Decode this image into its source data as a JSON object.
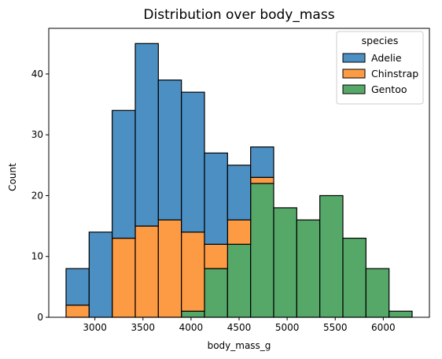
{
  "chart_data": {
    "type": "bar",
    "subtype": "stacked-histogram",
    "title": "Distribution over body_mass",
    "xlabel": "body_mass_g",
    "ylabel": "Count",
    "xlim": [
      2520,
      6480
    ],
    "ylim": [
      0,
      47.5
    ],
    "xticks": [
      3000,
      3500,
      4000,
      4500,
      5000,
      5500,
      6000
    ],
    "yticks": [
      0,
      10,
      20,
      30,
      40
    ],
    "bin_edges": [
      2700,
      2940,
      3180,
      3420,
      3660,
      3900,
      4140,
      4380,
      4620,
      4860,
      5100,
      5340,
      5580,
      5820,
      6060,
      6300
    ],
    "grid": false,
    "legend": {
      "title": "species",
      "position": "top-right",
      "entries": [
        "Adelie",
        "Chinstrap",
        "Gentoo"
      ]
    },
    "series": [
      {
        "name": "Gentoo",
        "color": "#55a868",
        "values": [
          0,
          0,
          0,
          0,
          0,
          1,
          8,
          12,
          22,
          18,
          16,
          20,
          13,
          8,
          1
        ]
      },
      {
        "name": "Chinstrap",
        "color": "#fd9a44",
        "values": [
          2,
          0,
          13,
          15,
          16,
          13,
          4,
          4,
          1,
          0,
          0,
          0,
          0,
          0,
          0
        ]
      },
      {
        "name": "Adelie",
        "color": "#4c8fc3",
        "values": [
          6,
          14,
          21,
          30,
          23,
          23,
          15,
          9,
          5,
          0,
          0,
          0,
          0,
          0,
          0
        ]
      }
    ]
  }
}
